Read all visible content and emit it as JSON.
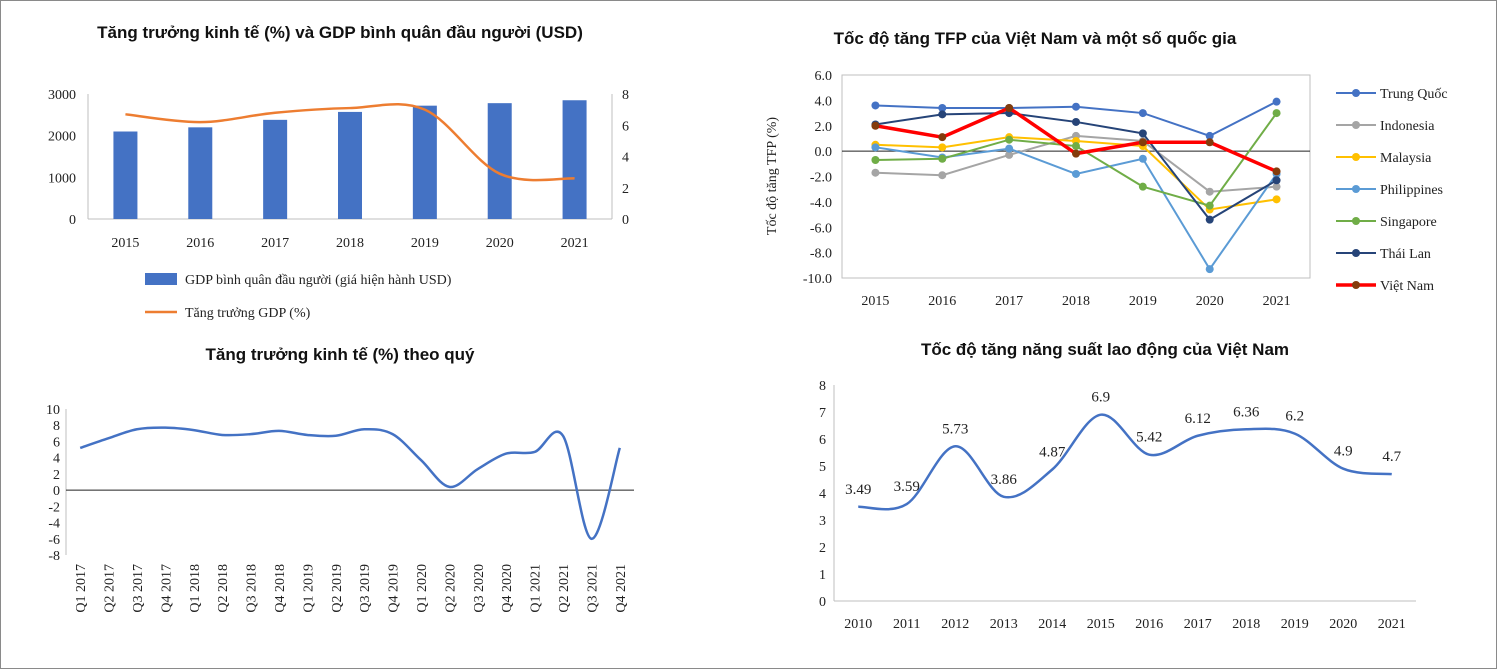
{
  "chart_data": [
    {
      "type": "bar+line",
      "title": "Tăng trưởng kinh tế (%) và GDP bình quân đầu người (USD)",
      "categories": [
        "2015",
        "2016",
        "2017",
        "2018",
        "2019",
        "2020",
        "2021"
      ],
      "ylim": [
        0,
        3000
      ],
      "yticks": [
        0,
        1000,
        2000,
        3000
      ],
      "y2lim": [
        0,
        8
      ],
      "y2ticks": [
        0,
        2,
        4,
        6,
        8
      ],
      "series": [
        {
          "name": "GDP bình quân đầu người (giá hiện hành USD)",
          "kind": "bar",
          "axis": "left",
          "color": "#4472C4",
          "values": [
            2100,
            2200,
            2380,
            2570,
            2720,
            2780,
            2850
          ]
        },
        {
          "name": "Tăng trưởng GDP (%)",
          "kind": "line",
          "axis": "right",
          "color": "#ED7D31",
          "values": [
            6.7,
            6.2,
            6.8,
            7.1,
            7.0,
            2.9,
            2.6
          ]
        }
      ],
      "legend_position": "bottom"
    },
    {
      "type": "line",
      "title": "Tốc độ tăng TFP của Việt Nam và một số quốc gia",
      "ylabel": "Tốc độ tăng TFP (%)",
      "categories": [
        "2015",
        "2016",
        "2017",
        "2018",
        "2019",
        "2020",
        "2021"
      ],
      "ylim": [
        -10,
        6
      ],
      "yticks": [
        "-10.0",
        "-8.0",
        "-6.0",
        "-4.0",
        "-2.0",
        "0.0",
        "2.0",
        "4.0",
        "6.0"
      ],
      "series": [
        {
          "name": "Trung Quốc",
          "color": "#4472C4",
          "values": [
            3.6,
            3.4,
            3.4,
            3.5,
            3.0,
            1.2,
            3.9
          ]
        },
        {
          "name": "Indonesia",
          "color": "#A5A5A5",
          "values": [
            -1.7,
            -1.9,
            -0.3,
            1.2,
            0.8,
            -3.2,
            -2.8
          ]
        },
        {
          "name": "Malaysia",
          "color": "#FFC000",
          "values": [
            0.5,
            0.3,
            1.1,
            0.8,
            0.4,
            -4.6,
            -3.8
          ]
        },
        {
          "name": "Philippines",
          "color": "#5B9BD5",
          "values": [
            0.3,
            -0.5,
            0.2,
            -1.8,
            -0.6,
            -9.3,
            -1.8
          ]
        },
        {
          "name": "Singapore",
          "color": "#70AD47",
          "values": [
            -0.7,
            -0.6,
            0.9,
            0.4,
            -2.8,
            -4.3,
            3.0
          ]
        },
        {
          "name": "Thái Lan",
          "color": "#264478",
          "values": [
            2.1,
            2.9,
            3.0,
            2.3,
            1.4,
            -5.4,
            -2.3
          ]
        },
        {
          "name": "Việt Nam",
          "color": "#FF0000",
          "values": [
            2.0,
            1.1,
            3.4,
            -0.2,
            0.7,
            0.7,
            -1.6
          ]
        }
      ],
      "legend_position": "right"
    },
    {
      "type": "line",
      "title": "Tăng trưởng kinh tế (%) theo quý",
      "categories": [
        "Q1 2017",
        "Q2 2017",
        "Q3 2017",
        "Q4 2017",
        "Q1 2018",
        "Q2 2018",
        "Q3 2018",
        "Q4 2018",
        "Q1 2019",
        "Q2 2019",
        "Q3 2019",
        "Q4 2019",
        "Q1 2020",
        "Q2 2020",
        "Q3 2020",
        "Q4 2020",
        "Q1 2021",
        "Q2 2021",
        "Q3 2021",
        "Q4 2021"
      ],
      "ylim": [
        -8,
        10
      ],
      "yticks": [
        -8,
        -6,
        -4,
        -2,
        0,
        2,
        4,
        6,
        8,
        10
      ],
      "series": [
        {
          "color": "#4472C4",
          "values": [
            5.2,
            6.4,
            7.5,
            7.7,
            7.4,
            6.8,
            6.9,
            7.3,
            6.8,
            6.7,
            7.5,
            6.9,
            3.7,
            0.4,
            2.6,
            4.5,
            4.7,
            6.7,
            -6.0,
            5.2
          ]
        }
      ]
    },
    {
      "type": "line",
      "title": "Tốc độ tăng năng suất lao động của Việt Nam",
      "categories": [
        "2010",
        "2011",
        "2012",
        "2013",
        "2014",
        "2015",
        "2016",
        "2017",
        "2018",
        "2019",
        "2020",
        "2021"
      ],
      "ylim": [
        0,
        8
      ],
      "yticks": [
        0,
        1,
        2,
        3,
        4,
        5,
        6,
        7,
        8
      ],
      "series": [
        {
          "color": "#4472C4",
          "values": [
            3.49,
            3.59,
            5.73,
            3.86,
            4.87,
            6.9,
            5.42,
            6.12,
            6.36,
            6.2,
            4.9,
            4.7
          ]
        }
      ],
      "data_labels": [
        "3.49",
        "3.59",
        "5.73",
        "3.86",
        "4.87",
        "6.9",
        "5.42",
        "6.12",
        "6.36",
        "6.2",
        "4.9",
        "4.7"
      ]
    }
  ]
}
